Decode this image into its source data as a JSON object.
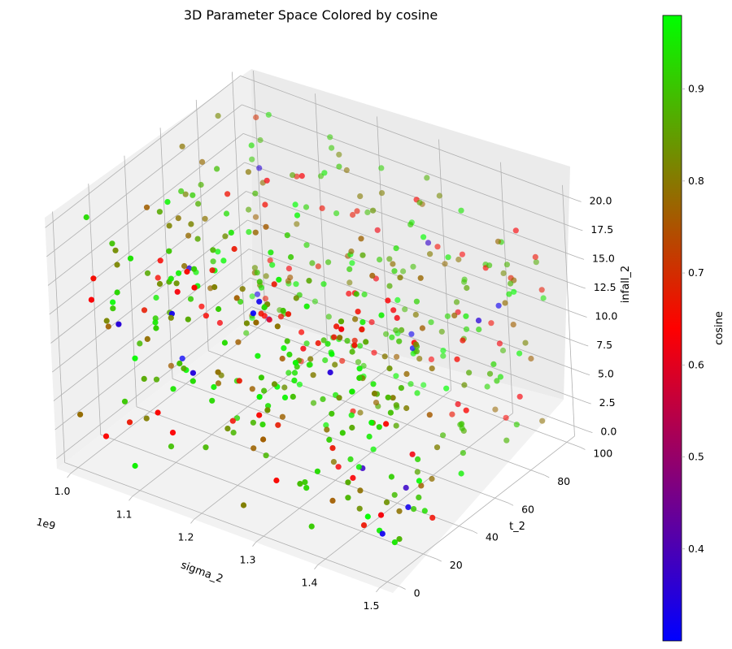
{
  "chart_data": {
    "type": "scatter",
    "title": "3D Parameter Space Colored by cosine",
    "xlabel": "sigma_2",
    "ylabel": "t_2",
    "zlabel": "infall_2",
    "x_offset_label": "1e9",
    "x_ticks": [
      "1.0",
      "1.1",
      "1.2",
      "1.3",
      "1.4",
      "1.5"
    ],
    "y_ticks": [
      "0",
      "20",
      "40",
      "60",
      "80",
      "100"
    ],
    "z_ticks": [
      "0.0",
      "2.5",
      "5.0",
      "7.5",
      "10.0",
      "12.5",
      "15.0",
      "17.5",
      "20.0"
    ],
    "xlim": [
      1.0,
      1.5
    ],
    "ylim": [
      0,
      100
    ],
    "zlim": [
      0,
      20
    ],
    "colorbar": {
      "label": "cosine",
      "range": [
        0.3,
        0.98
      ],
      "ticks": [
        "0.4",
        "0.5",
        "0.6",
        "0.7",
        "0.8",
        "0.9"
      ],
      "colors": [
        "#0000ff",
        "#ff0000",
        "#00ff00"
      ]
    },
    "point_count": 500,
    "sample_points_note_values": [
      {
        "x": 1.45,
        "y": 15,
        "z": 0.5,
        "c": 0.32
      },
      {
        "x": 1.02,
        "y": 98,
        "z": 18,
        "c": 0.7
      },
      {
        "x": 1.3,
        "y": 50,
        "z": 10,
        "c": 0.9
      }
    ]
  }
}
